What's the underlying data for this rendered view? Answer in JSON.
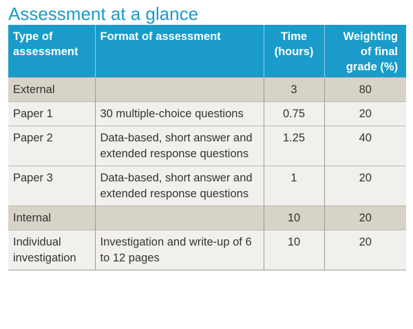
{
  "title": "Assessment at a glance",
  "table": {
    "headers": {
      "type": "Type of assessment",
      "format": "Format of assessment",
      "time": "Time (hours)",
      "weighting": "Weighting of final grade (%)"
    },
    "rows": [
      {
        "type": "External",
        "format": "",
        "time": "3",
        "weighting": "80",
        "shaded": true
      },
      {
        "type": "Paper 1",
        "format": "30 multiple-choice questions",
        "time": "0.75",
        "weighting": "20",
        "shaded": false
      },
      {
        "type": "Paper 2",
        "format": "Data-based, short answer and extended response questions",
        "time": "1.25",
        "weighting": "40",
        "shaded": false
      },
      {
        "type": "Paper 3",
        "format": "Data-based, short answer and extended response questions",
        "time": "1",
        "weighting": "20",
        "shaded": false
      },
      {
        "type": "Internal",
        "format": "",
        "time": "10",
        "weighting": "20",
        "shaded": true
      },
      {
        "type": "Individual investigation",
        "format": "Investigation and write-up of 6 to 12 pages",
        "time": "10",
        "weighting": "20",
        "shaded": false
      }
    ]
  },
  "colors": {
    "title": "#1a9bc9",
    "header_bg": "#1a9bc9",
    "header_text": "#ffffff",
    "shaded_row": "#d8d3c7",
    "plain_row": "#f2f0ec"
  }
}
